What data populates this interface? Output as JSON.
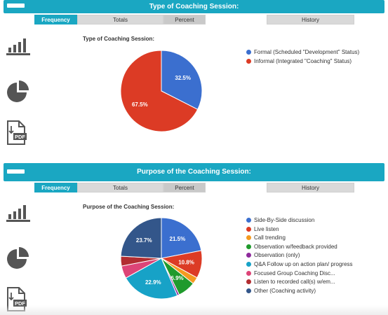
{
  "sections": [
    {
      "header_title": "Type of Coaching Session:",
      "tabs": [
        "Frequency",
        "Totals",
        "Percent",
        "History"
      ],
      "chart_title": "Type of Coaching Session:",
      "chart_data": {
        "type": "pie",
        "title": "Type of Coaching Session:",
        "slices": [
          {
            "label": "Formal (Scheduled \"Development\" Status)",
            "value": 32.5,
            "display": "32.5%",
            "color": "#3b6fcf"
          },
          {
            "label": "Informal (Integrated \"Coaching\" Status)",
            "value": 67.5,
            "display": "67.5%",
            "color": "#dc3b25"
          }
        ],
        "legend_position": "right"
      }
    },
    {
      "header_title": "Purpose of the Coaching Session:",
      "tabs": [
        "Frequency",
        "Totals",
        "Percent",
        "History"
      ],
      "chart_title": "Purpose of the Coaching Session:",
      "chart_data": {
        "type": "pie",
        "title": "Purpose of the Coaching Session:",
        "slices": [
          {
            "label": "Side-By-Side discussion",
            "value": 21.5,
            "display": "21.5%",
            "color": "#3b6fcf"
          },
          {
            "label": "Live listen",
            "value": 10.8,
            "display": "10.8%",
            "color": "#dc3b25"
          },
          {
            "label": "Call trending",
            "value": 2.7,
            "display": "",
            "color": "#f49a1f"
          },
          {
            "label": "Observation w/feedback provided",
            "value": 6.9,
            "display": "6.9%",
            "color": "#1f9a2c"
          },
          {
            "label": "Observation (only)",
            "value": 0.8,
            "display": "",
            "color": "#8e2a9c"
          },
          {
            "label": "Q&A Follow up on action plan/ progress",
            "value": 22.9,
            "display": "22.9%",
            "color": "#17a2c7"
          },
          {
            "label": "Focused Group Coaching Disc...",
            "value": 4.9,
            "display": "",
            "color": "#dd4477"
          },
          {
            "label": "Listen to recorded call(s) w/em...",
            "value": 3.8,
            "display": "",
            "color": "#b22d31"
          },
          {
            "label": "Other (Coaching activity)",
            "value": 23.7,
            "display": "23.7%",
            "color": "#33568a"
          }
        ],
        "legend_position": "right"
      }
    }
  ],
  "icons": [
    "bar-chart-icon",
    "pie-chart-icon",
    "pdf-icon",
    "menu-icon"
  ]
}
